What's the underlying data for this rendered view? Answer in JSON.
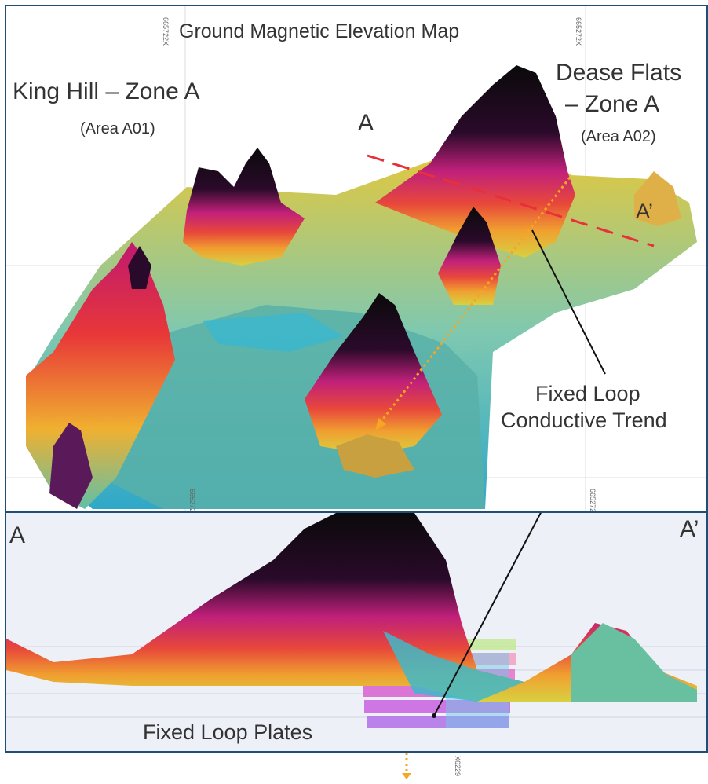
{
  "map": {
    "title": "Ground Magnetic Elevation Map",
    "zones": {
      "left_title": "King Hill – Zone A",
      "left_area": "(Area A01)",
      "right_title_line1": "Dease Flats",
      "right_title_line2": "– Zone A",
      "right_area": "(Area A02)"
    },
    "section_labels": {
      "start": "A",
      "end": "A’"
    },
    "annotations": {
      "trend_line1": "Fixed Loop",
      "trend_line2": "Conductive Trend",
      "plates": "Fixed Loop Plates"
    },
    "grid_coords": {
      "top_a": "665722X",
      "top_b": "665272X",
      "mid_a": "665272",
      "mid_b": "665272",
      "bottom": "X6229"
    },
    "colors": {
      "section_line": "#e8303a",
      "trend_arrow": "#f5a623",
      "panel_border": "#1f4e79"
    }
  }
}
